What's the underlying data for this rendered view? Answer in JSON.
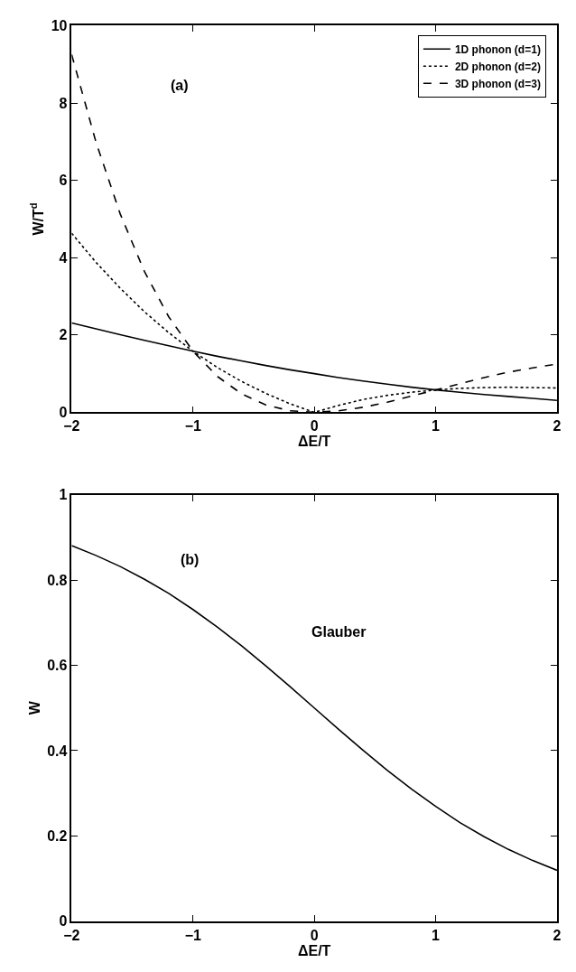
{
  "chart_data": [
    {
      "type": "line",
      "xlabel": "ΔE/T",
      "ylabel": "W/T$^{d}$",
      "annotations": [
        "(a)"
      ],
      "x": [
        -2,
        -1.8,
        -1.6,
        -1.4,
        -1.2,
        -1,
        -0.8,
        -0.6,
        -0.4,
        -0.2,
        0,
        0.2,
        0.4,
        0.6,
        0.8,
        1,
        1.2,
        1.4,
        1.6,
        1.8,
        2
      ],
      "xlim": [
        -2,
        2
      ],
      "xticks": [
        -2,
        -1,
        0,
        1,
        2
      ],
      "ylim": [
        0,
        10
      ],
      "yticks": [
        0,
        2,
        4,
        6,
        8,
        10
      ],
      "legend": "top right",
      "marker": "none",
      "series": [
        {
          "name": "1D phonon (d=1)",
          "color": "#000000",
          "line_style": "solid",
          "values": [
            2.31,
            2.16,
            2.01,
            1.86,
            1.72,
            1.58,
            1.45,
            1.33,
            1.21,
            1.1,
            1.0,
            0.9,
            0.81,
            0.73,
            0.65,
            0.58,
            0.52,
            0.46,
            0.41,
            0.36,
            0.31
          ]
        },
        {
          "name": "2D phonon (d=2)",
          "color": "#000000",
          "line_style": "dotted",
          "values": [
            4.63,
            3.88,
            3.21,
            2.6,
            2.06,
            1.58,
            1.16,
            0.8,
            0.49,
            0.22,
            0.0,
            0.18,
            0.33,
            0.44,
            0.52,
            0.58,
            0.62,
            0.64,
            0.65,
            0.64,
            0.63
          ]
        },
        {
          "name": "3D phonon (d=3)",
          "color": "#000000",
          "line_style": "dashed",
          "values": [
            9.25,
            6.99,
            5.13,
            3.64,
            2.47,
            1.58,
            0.93,
            0.48,
            0.19,
            0.04,
            0.0,
            0.04,
            0.13,
            0.26,
            0.42,
            0.58,
            0.74,
            0.9,
            1.04,
            1.15,
            1.25
          ]
        }
      ]
    },
    {
      "type": "line",
      "xlabel": "ΔE/T",
      "ylabel": "W",
      "annotations": [
        "(b)",
        "Glauber"
      ],
      "x": [
        -2,
        -1.8,
        -1.6,
        -1.4,
        -1.2,
        -1,
        -0.8,
        -0.6,
        -0.4,
        -0.2,
        0,
        0.2,
        0.4,
        0.6,
        0.8,
        1,
        1.2,
        1.4,
        1.6,
        1.8,
        2
      ],
      "xlim": [
        -2,
        2
      ],
      "xticks": [
        -2,
        -1,
        0,
        1,
        2
      ],
      "ylim": [
        0,
        1
      ],
      "yticks": [
        0,
        0.2,
        0.4,
        0.6,
        0.8,
        1
      ],
      "marker": "none",
      "series": [
        {
          "color": "#000000",
          "line_style": "solid",
          "values": [
            0.881,
            0.858,
            0.832,
            0.802,
            0.769,
            0.731,
            0.69,
            0.646,
            0.599,
            0.55,
            0.5,
            0.45,
            0.401,
            0.354,
            0.31,
            0.269,
            0.231,
            0.198,
            0.168,
            0.142,
            0.119
          ]
        }
      ]
    }
  ]
}
